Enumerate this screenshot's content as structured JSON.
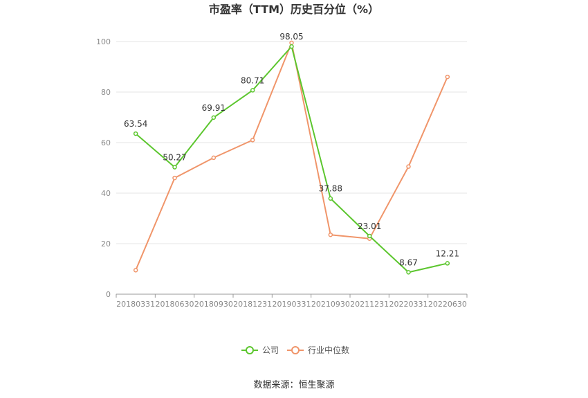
{
  "chart_data": {
    "type": "line",
    "title": "市盈率（TTM）历史百分位（%）",
    "categories": [
      "20180331",
      "20180630",
      "20180930",
      "20181231",
      "20190331",
      "20210930",
      "20211231",
      "20220331",
      "20220630"
    ],
    "series": [
      {
        "name": "公司",
        "color": "#5cc62e",
        "values": [
          63.54,
          50.27,
          69.91,
          80.71,
          98.05,
          37.88,
          23.01,
          8.67,
          12.21
        ],
        "labels": [
          "63.54",
          "50.27",
          "69.91",
          "80.71",
          "98.05",
          "37.88",
          "23.01",
          "8.67",
          "12.21"
        ]
      },
      {
        "name": "行业中位数",
        "color": "#f0956a",
        "values": [
          9.5,
          46.0,
          54.0,
          61.0,
          99.5,
          23.5,
          22.0,
          50.5,
          86.0
        ]
      }
    ],
    "ylim": [
      0,
      100
    ],
    "yticks": [
      0,
      20,
      40,
      60,
      80,
      100
    ],
    "grid": true,
    "legend_position": "bottom"
  },
  "footer": {
    "source": "数据来源：恒生聚源"
  }
}
